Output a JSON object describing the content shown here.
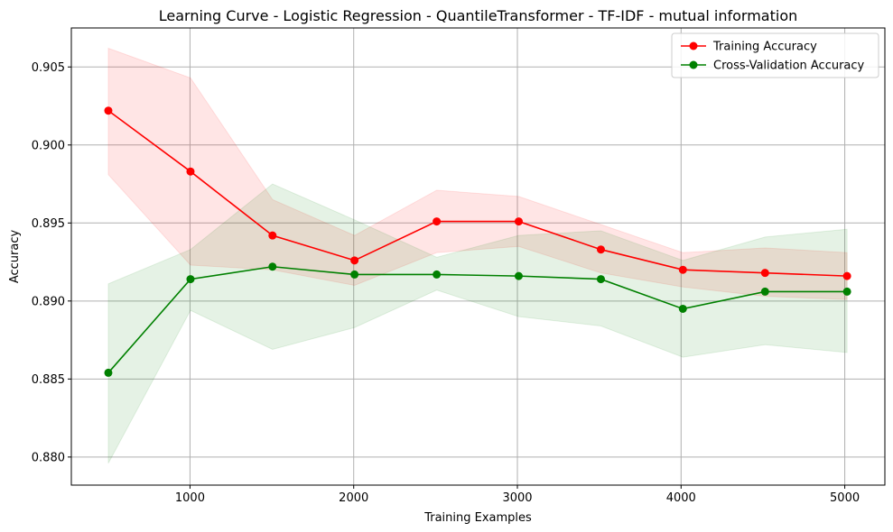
{
  "chart_data": {
    "type": "line",
    "title": "Learning Curve - Logistic Regression - QuantileTransformer - TF-IDF - mutual information",
    "xlabel": "Training Examples",
    "ylabel": "Accuracy",
    "xlim": [
      275,
      5245
    ],
    "ylim": [
      0.8782,
      0.9075
    ],
    "xticks": [
      1000,
      2000,
      3000,
      4000,
      5000
    ],
    "yticks": [
      0.88,
      0.885,
      0.89,
      0.895,
      0.9,
      0.905
    ],
    "xtick_labels": [
      "1000",
      "2000",
      "3000",
      "4000",
      "5000"
    ],
    "ytick_labels": [
      "0.880",
      "0.885",
      "0.890",
      "0.895",
      "0.900",
      "0.905"
    ],
    "grid": true,
    "legend_position": "top-right",
    "x": [
      501,
      1003,
      1504,
      2005,
      2507,
      3008,
      3510,
      4011,
      4513,
      5014
    ],
    "series": [
      {
        "name": "Training Accuracy",
        "color": "#ff0000",
        "values": [
          0.9022,
          0.8983,
          0.8942,
          0.8926,
          0.8951,
          0.8951,
          0.8933,
          0.892,
          0.8918,
          0.8916
        ],
        "band_lower": [
          0.8981,
          0.8923,
          0.892,
          0.891,
          0.8931,
          0.8935,
          0.8918,
          0.8909,
          0.8903,
          0.8901
        ],
        "band_upper": [
          0.9062,
          0.9043,
          0.8965,
          0.8942,
          0.8971,
          0.8967,
          0.8949,
          0.8931,
          0.8934,
          0.8931
        ],
        "band_color": "#ff0000"
      },
      {
        "name": "Cross-Validation Accuracy",
        "color": "#008000",
        "values": [
          0.8854,
          0.8914,
          0.8922,
          0.8917,
          0.8917,
          0.8916,
          0.8914,
          0.8895,
          0.8906,
          0.8906
        ],
        "band_lower": [
          0.8796,
          0.8894,
          0.8869,
          0.8883,
          0.8907,
          0.889,
          0.8884,
          0.8864,
          0.8872,
          0.8867
        ],
        "band_upper": [
          0.8911,
          0.8933,
          0.8975,
          0.8952,
          0.8928,
          0.8942,
          0.8945,
          0.8926,
          0.8941,
          0.8946
        ],
        "band_color": "#008000"
      }
    ]
  }
}
